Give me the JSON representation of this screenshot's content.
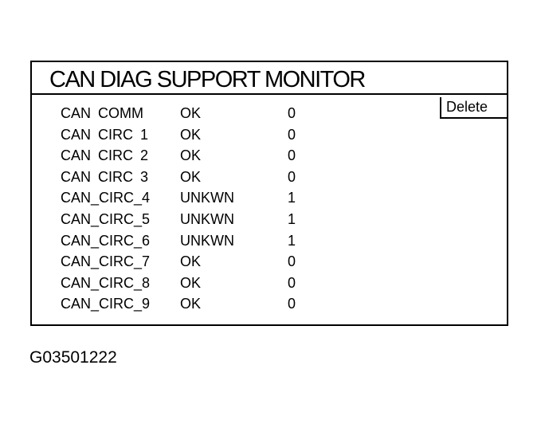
{
  "window": {
    "title": "CAN DIAG SUPPORT MONITOR",
    "delete_label": "Delete"
  },
  "rows": [
    {
      "name": "CAN COMM",
      "status": "OK",
      "count": "0"
    },
    {
      "name": "CAN CIRC 1",
      "status": "OK",
      "count": "0"
    },
    {
      "name": "CAN CIRC 2",
      "status": "OK",
      "count": "0"
    },
    {
      "name": "CAN CIRC 3",
      "status": "OK",
      "count": "0"
    },
    {
      "name": "CAN_CIRC_4",
      "status": "UNKWN",
      "count": "1"
    },
    {
      "name": "CAN_CIRC_5",
      "status": "UNKWN",
      "count": "1"
    },
    {
      "name": "CAN_CIRC_6",
      "status": "UNKWN",
      "count": "1"
    },
    {
      "name": "CAN_CIRC_7",
      "status": "OK",
      "count": "0"
    },
    {
      "name": "CAN_CIRC_8",
      "status": "OK",
      "count": "0"
    },
    {
      "name": "CAN_CIRC_9",
      "status": "OK",
      "count": "0"
    }
  ],
  "caption": "G03501222"
}
